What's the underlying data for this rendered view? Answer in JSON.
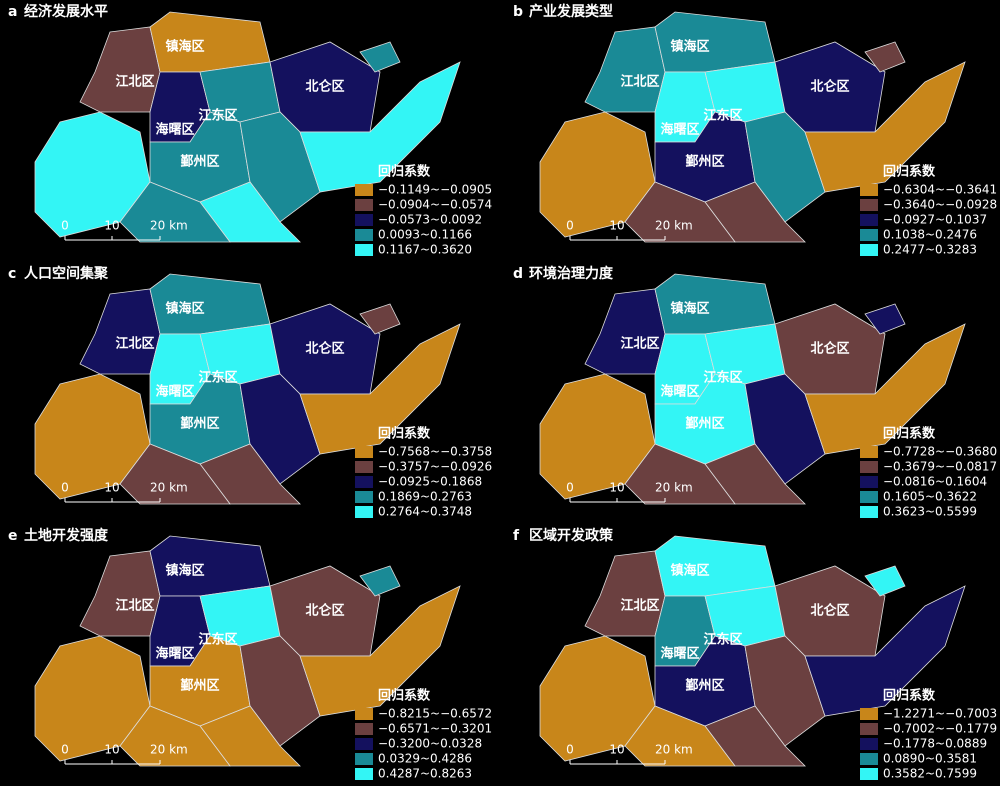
{
  "panels": [
    {
      "label": "a",
      "title": "经济发展水平",
      "districts": [
        "镇海区",
        "江北区",
        "江东区",
        "海曙区",
        "鄞州区",
        "北仑区"
      ],
      "legend_title": "回归系数",
      "legend": [
        {
          "label": "−0.1149~−0.0905",
          "color": "#c8861a"
        },
        {
          "label": "−0.0904~−0.0574",
          "color": "#6b4040"
        },
        {
          "label": "−0.0573~0.0092",
          "color": "#14115e"
        },
        {
          "label": "0.0093~0.1166",
          "color": "#1a8a96"
        },
        {
          "label": "0.1167~0.3620",
          "color": "#33f5f5"
        }
      ],
      "scale": [
        "0",
        "10",
        "20 km"
      ]
    },
    {
      "label": "b",
      "title": "产业发展类型",
      "districts": [
        "镇海区",
        "江北区",
        "江东区",
        "海曙区",
        "鄞州区",
        "北仑区"
      ],
      "legend_title": "回归系数",
      "legend": [
        {
          "label": "−0.6304~−0.3641",
          "color": "#c8861a"
        },
        {
          "label": "−0.3640~−0.0928",
          "color": "#6b4040"
        },
        {
          "label": "−0.0927~0.1037",
          "color": "#14115e"
        },
        {
          "label": "0.1038~0.2476",
          "color": "#1a8a96"
        },
        {
          "label": "0.2477~0.3283",
          "color": "#33f5f5"
        }
      ],
      "scale": [
        "0",
        "10",
        "20 km"
      ]
    },
    {
      "label": "c",
      "title": "人口空间集聚",
      "districts": [
        "镇海区",
        "江北区",
        "江东区",
        "海曙区",
        "鄞州区",
        "北仑区"
      ],
      "legend_title": "回归系数",
      "legend": [
        {
          "label": "−0.7568~−0.3758",
          "color": "#c8861a"
        },
        {
          "label": "−0.3757~−0.0926",
          "color": "#6b4040"
        },
        {
          "label": "−0.0925~0.1868",
          "color": "#14115e"
        },
        {
          "label": "0.1869~0.2763",
          "color": "#1a8a96"
        },
        {
          "label": "0.2764~0.3748",
          "color": "#33f5f5"
        }
      ],
      "scale": [
        "0",
        "10",
        "20 km"
      ]
    },
    {
      "label": "d",
      "title": "环境治理力度",
      "districts": [
        "镇海区",
        "江北区",
        "江东区",
        "海曙区",
        "鄞州区",
        "北仑区"
      ],
      "legend_title": "回归系数",
      "legend": [
        {
          "label": "−0.7728~−0.3680",
          "color": "#c8861a"
        },
        {
          "label": "−0.3679~−0.0817",
          "color": "#6b4040"
        },
        {
          "label": "−0.0816~0.1604",
          "color": "#14115e"
        },
        {
          "label": "0.1605~0.3622",
          "color": "#1a8a96"
        },
        {
          "label": "0.3623~0.5599",
          "color": "#33f5f5"
        }
      ],
      "scale": [
        "0",
        "10",
        "20 km"
      ]
    },
    {
      "label": "e",
      "title": "土地开发强度",
      "districts": [
        "镇海区",
        "江北区",
        "江东区",
        "海曙区",
        "鄞州区",
        "北仑区"
      ],
      "legend_title": "回归系数",
      "legend": [
        {
          "label": "−0.8215~−0.6572",
          "color": "#c8861a"
        },
        {
          "label": "−0.6571~−0.3201",
          "color": "#6b4040"
        },
        {
          "label": "−0.3200~0.0328",
          "color": "#14115e"
        },
        {
          "label": "0.0329~0.4286",
          "color": "#1a8a96"
        },
        {
          "label": "0.4287~0.8263",
          "color": "#33f5f5"
        }
      ],
      "scale": [
        "0",
        "10",
        "20 km"
      ]
    },
    {
      "label": "f",
      "title": "区域开发政策",
      "districts": [
        "镇海区",
        "江北区",
        "江东区",
        "海曙区",
        "鄞州区",
        "北仑区"
      ],
      "legend_title": "回归系数",
      "legend": [
        {
          "label": "−1.2271~−0.7003",
          "color": "#c8861a"
        },
        {
          "label": "−0.7002~−0.1779",
          "color": "#6b4040"
        },
        {
          "label": "−0.1778~0.0889",
          "color": "#14115e"
        },
        {
          "label": "0.0890~0.3581",
          "color": "#1a8a96"
        },
        {
          "label": "0.3582~0.7599",
          "color": "#33f5f5"
        }
      ],
      "scale": [
        "0",
        "10",
        "20 km"
      ]
    }
  ]
}
